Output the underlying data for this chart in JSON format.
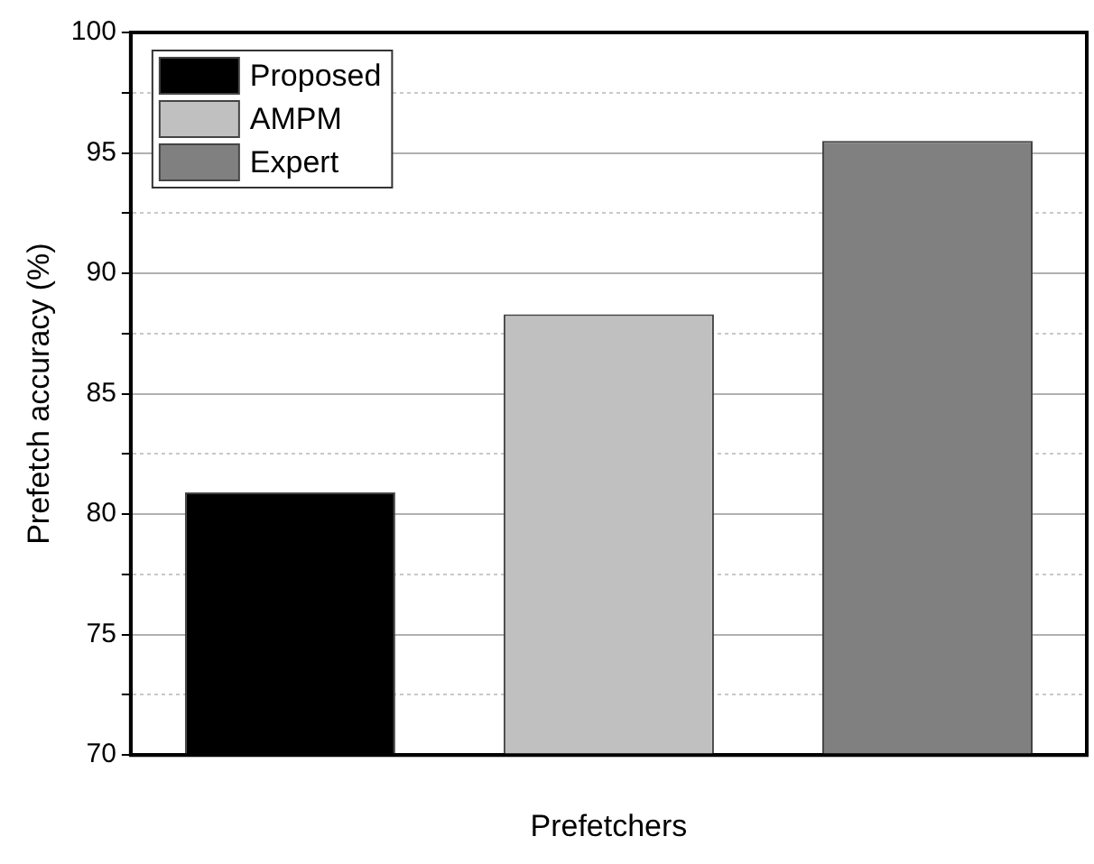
{
  "chart_data": {
    "type": "bar",
    "xlabel": "Prefetchers",
    "ylabel": "Prefetch accuracy (%)",
    "categories": [
      null,
      null,
      null
    ],
    "series": [
      {
        "name": "Proposed",
        "color": "#000000",
        "values": [
          80.9,
          null,
          null
        ]
      },
      {
        "name": "AMPM",
        "color": "#c0c0c0",
        "values": [
          null,
          88.3,
          null
        ]
      },
      {
        "name": "Expert",
        "color": "#808080",
        "values": [
          null,
          null,
          95.5
        ]
      }
    ],
    "ylim": [
      70,
      100
    ],
    "yticks": [
      70,
      {
        "value": 72.5,
        "label": null
      },
      75,
      {
        "value": 77.5,
        "label": null
      },
      80,
      {
        "value": 82.5,
        "label": null
      },
      85,
      {
        "value": 87.5,
        "label": null
      },
      90,
      {
        "value": 92.5,
        "label": null
      },
      95,
      {
        "value": 97.5,
        "label": null
      },
      100
    ],
    "grid": "y",
    "legend": "top left"
  }
}
